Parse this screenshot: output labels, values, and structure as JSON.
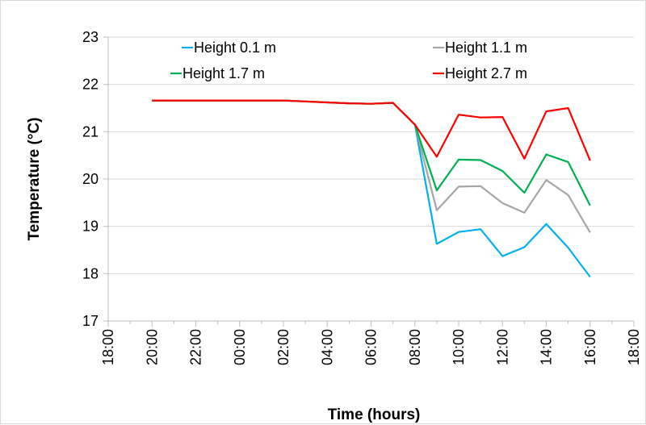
{
  "chart_data": {
    "type": "line",
    "xlabel": "Time (hours)",
    "ylabel": "Temperature (°C)",
    "ylim": [
      17,
      23
    ],
    "y_ticks": [
      "17",
      "18",
      "19",
      "20",
      "21",
      "22",
      "23"
    ],
    "x_tick_labels": [
      "18:00",
      "20:00",
      "22:00",
      "00:00",
      "02:00",
      "04:00",
      "06:00",
      "08:00",
      "10:00",
      "12:00",
      "14:00",
      "16:00",
      "18:00"
    ],
    "x_hours_from_start": [
      2,
      3,
      4,
      5,
      6,
      7,
      8,
      9,
      10,
      11,
      12,
      13,
      14,
      15,
      16,
      17,
      18,
      19,
      20,
      21,
      22
    ],
    "x_times": [
      "20:00",
      "21:00",
      "22:00",
      "23:00",
      "00:00",
      "01:00",
      "02:00",
      "03:00",
      "04:00",
      "05:00",
      "06:00",
      "07:00",
      "08:00",
      "09:00",
      "10:00",
      "11:00",
      "12:00",
      "13:00",
      "14:00",
      "15:00",
      "16:00"
    ],
    "grid": "horizontal",
    "legend": "top",
    "series": [
      {
        "name": "Height 0.1 m",
        "color": "#00b0f0",
        "values": [
          21.66,
          21.66,
          21.66,
          21.66,
          21.66,
          21.66,
          21.66,
          21.64,
          21.62,
          21.6,
          21.59,
          21.61,
          21.15,
          18.63,
          18.88,
          18.94,
          18.37,
          18.56,
          19.05,
          18.55,
          17.93
        ]
      },
      {
        "name": "Height 1.1 m",
        "color": "#a6a6a6",
        "values": [
          21.66,
          21.66,
          21.66,
          21.66,
          21.66,
          21.66,
          21.66,
          21.64,
          21.62,
          21.6,
          21.59,
          21.61,
          21.15,
          19.34,
          19.84,
          19.85,
          19.49,
          19.29,
          19.98,
          19.66,
          18.87
        ]
      },
      {
        "name": "Height 1.7 m",
        "color": "#00b050",
        "values": [
          21.66,
          21.66,
          21.66,
          21.66,
          21.66,
          21.66,
          21.66,
          21.64,
          21.62,
          21.6,
          21.59,
          21.61,
          21.15,
          19.76,
          20.41,
          20.4,
          20.17,
          19.71,
          20.52,
          20.36,
          19.44
        ]
      },
      {
        "name": "Height 2.7 m",
        "color": "#ff0000",
        "values": [
          21.66,
          21.66,
          21.66,
          21.66,
          21.66,
          21.66,
          21.66,
          21.64,
          21.62,
          21.6,
          21.59,
          21.61,
          21.15,
          20.47,
          21.36,
          21.3,
          21.31,
          20.43,
          21.43,
          21.5,
          20.39
        ]
      }
    ]
  }
}
